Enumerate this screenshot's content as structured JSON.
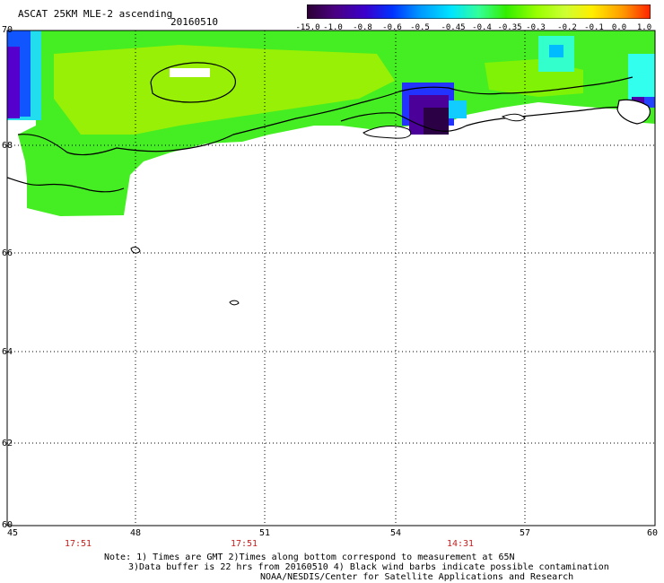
{
  "header": {
    "title": "ASCAT 25KM MLE-2 ascending",
    "date": "20160510"
  },
  "colorbar": {
    "labels": [
      "-15.0",
      "-1.0",
      "-0.8",
      "-0.6",
      "-0.5",
      "-0.45",
      "-0.4",
      "-0.35",
      "-0.3",
      "-0.2",
      "-0.1",
      "0.0",
      "1.0"
    ],
    "colors": [
      "#2b0033",
      "#4a0080",
      "#3b00cc",
      "#0033ff",
      "#0099ff",
      "#00e5ff",
      "#33ff99",
      "#33ee00",
      "#99ff00",
      "#ccff33",
      "#ffee00",
      "#ff9900",
      "#ff2200"
    ]
  },
  "map": {
    "lat_labels": [
      "70",
      "68",
      "66",
      "64",
      "62",
      "60"
    ],
    "lon_labels": [
      "45",
      "48",
      "51",
      "54",
      "57",
      "60"
    ],
    "times": [
      "17:51",
      "17:51",
      "14:31"
    ],
    "grid": {
      "lat_range": [
        60,
        70
      ],
      "lon_range": [
        45,
        60
      ]
    }
  },
  "notes": {
    "line1": "Note: 1) Times are GMT 2)Times along bottom correspond to measurement at 65N",
    "line2": "3)Data buffer is 22 hrs from 20160510 4) Black wind barbs indicate possible contamination",
    "line3": "NOAA/NESDIS/Center for Satellite Applications and Research"
  }
}
